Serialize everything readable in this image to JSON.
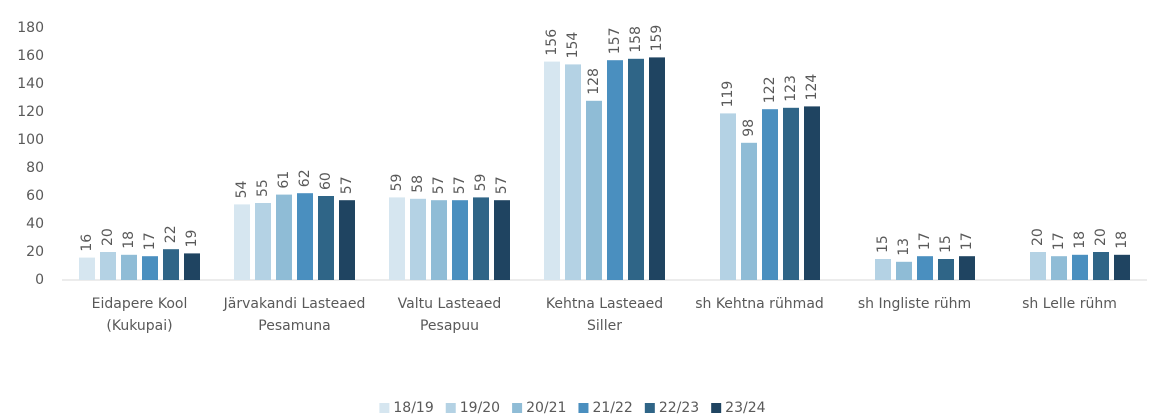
{
  "chart_data": {
    "type": "bar",
    "categories": [
      "Eidapere Kool (Kukupai)",
      "Järvakandi Lasteaed Pesamuna",
      "Valtu Lasteaed Pesapuu",
      "Kehtna Lasteaed Siller",
      "sh Kehtna rühmad",
      "sh Ingliste rühm",
      "sh Lelle rühm"
    ],
    "series": [
      {
        "name": "18/19",
        "color": "#d6e6f0",
        "values": [
          16,
          54,
          59,
          156,
          null,
          null,
          null
        ]
      },
      {
        "name": "19/20",
        "color": "#b4d2e4",
        "values": [
          20,
          55,
          58,
          154,
          119,
          15,
          20
        ]
      },
      {
        "name": "20/21",
        "color": "#8fbcd6",
        "values": [
          18,
          61,
          57,
          128,
          98,
          13,
          17
        ]
      },
      {
        "name": "21/22",
        "color": "#4a8fbf",
        "values": [
          17,
          62,
          57,
          157,
          122,
          17,
          18
        ]
      },
      {
        "name": "22/23",
        "color": "#2f6587",
        "values": [
          22,
          60,
          59,
          158,
          123,
          15,
          20
        ]
      },
      {
        "name": "23/24",
        "color": "#1f4461",
        "values": [
          19,
          57,
          57,
          159,
          124,
          17,
          18
        ]
      }
    ],
    "ylim": [
      0,
      180
    ],
    "yticks": [
      0,
      20,
      40,
      60,
      80,
      100,
      120,
      140,
      160,
      180
    ],
    "grid": false,
    "legend": "bottom"
  }
}
